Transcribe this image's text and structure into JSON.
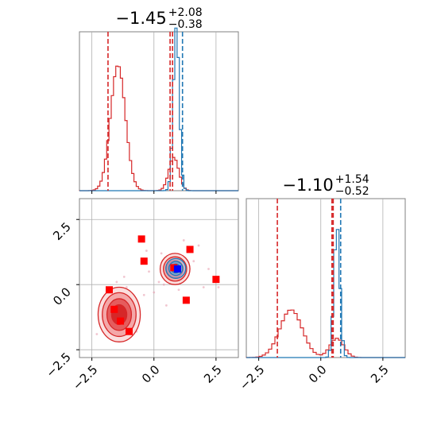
{
  "chart_data": {
    "type": "corner",
    "parameters": [
      {
        "title_value": "−1.45",
        "title_plus": "+2.08",
        "title_minus": "−0.38",
        "xlim": [
          -3.0,
          3.4
        ],
        "xticks": [
          -2.5,
          0.0,
          2.5
        ],
        "xtick_labels": [
          "−2.5",
          "0.0",
          "2.5"
        ]
      },
      {
        "title_value": "−1.10",
        "title_plus": "+1.54",
        "title_minus": "−0.52",
        "xlim": [
          -3.0,
          3.4
        ],
        "xticks": [
          -2.5,
          0.0,
          2.5
        ],
        "xtick_labels": [
          "−2.5",
          "0.0",
          "2.5"
        ]
      }
    ],
    "ylim_2d": [
      -2.8,
      3.3
    ],
    "yticks_2d": [
      -2.5,
      0.0,
      2.5
    ],
    "ytick_labels_2d": [
      "−2.5",
      "0.0",
      "2.5"
    ],
    "grid": true,
    "series": [
      {
        "color": "#d62728",
        "hist_components": [
          {
            "mean": -1.45,
            "sd": 0.3,
            "weight": 0.85
          },
          {
            "mean": 0.8,
            "sd": 0.2,
            "weight": 0.15
          }
        ]
      },
      {
        "color": "#1f77b4",
        "hist_components": [
          {
            "mean": 0.9,
            "sd": 0.12,
            "weight": 1.0
          }
        ]
      }
    ],
    "hist_param2": {
      "red_components": [
        {
          "mean": -1.2,
          "sd": 0.45,
          "weight": 0.8
        },
        {
          "mean": 0.65,
          "sd": 0.28,
          "weight": 0.2
        }
      ],
      "blue_components": [
        {
          "mean": 0.65,
          "sd": 0.12,
          "weight": 1.0
        }
      ]
    },
    "vlines_param1": [
      {
        "x": -1.85,
        "color": "#d62728"
      },
      {
        "x": 0.65,
        "color": "#d62728"
      },
      {
        "x": 0.75,
        "color": "#d62728"
      },
      {
        "x": 1.15,
        "color": "#1f77b4"
      }
    ],
    "vlines_param2": [
      {
        "x": -1.75,
        "color": "#d62728"
      },
      {
        "x": 0.45,
        "color": "#d62728"
      },
      {
        "x": 0.5,
        "color": "#d62728"
      },
      {
        "x": 0.8,
        "color": "#1f77b4"
      }
    ],
    "red_squares": [
      [
        -1.8,
        -0.2
      ],
      [
        -1.6,
        -0.95
      ],
      [
        -1.35,
        -1.4
      ],
      [
        -1.0,
        -1.8
      ],
      [
        -0.5,
        1.75
      ],
      [
        -0.4,
        0.9
      ],
      [
        1.45,
        1.35
      ],
      [
        1.3,
        -0.6
      ],
      [
        2.5,
        0.2
      ],
      [
        0.8,
        0.65
      ]
    ],
    "blue_marker": [
      0.95,
      0.6
    ],
    "scatter_points": [
      [
        -1.9,
        -0.6
      ],
      [
        -1.1,
        -0.1
      ],
      [
        -0.9,
        -0.8
      ],
      [
        -2.1,
        -1.2
      ],
      [
        -0.6,
        -1.0
      ],
      [
        -0.4,
        -0.4
      ],
      [
        0.2,
        0.1
      ],
      [
        0.0,
        -0.3
      ],
      [
        -0.2,
        0.5
      ],
      [
        1.6,
        0.9
      ],
      [
        2.2,
        0.6
      ],
      [
        2.0,
        -0.1
      ],
      [
        1.8,
        1.5
      ],
      [
        0.3,
        1.2
      ],
      [
        -1.2,
        0.3
      ],
      [
        -2.3,
        -1.9
      ],
      [
        -0.7,
        -1.8
      ],
      [
        0.5,
        -0.8
      ],
      [
        1.0,
        -0.2
      ],
      [
        2.6,
        -0.1
      ],
      [
        -1.5,
        0.1
      ],
      [
        -0.3,
        1.3
      ],
      [
        0.4,
        0.0
      ],
      [
        1.2,
        1.7
      ]
    ],
    "red_blob": {
      "cx": -1.4,
      "cy": -1.15,
      "rx": 0.85,
      "ry": 1.05
    },
    "red_blob_small": {
      "cx": 0.85,
      "cy": 0.6,
      "rx": 0.6,
      "ry": 0.6
    },
    "blue_blob": {
      "cx": 0.88,
      "cy": 0.62,
      "rx": 0.4,
      "ry": 0.38
    }
  }
}
